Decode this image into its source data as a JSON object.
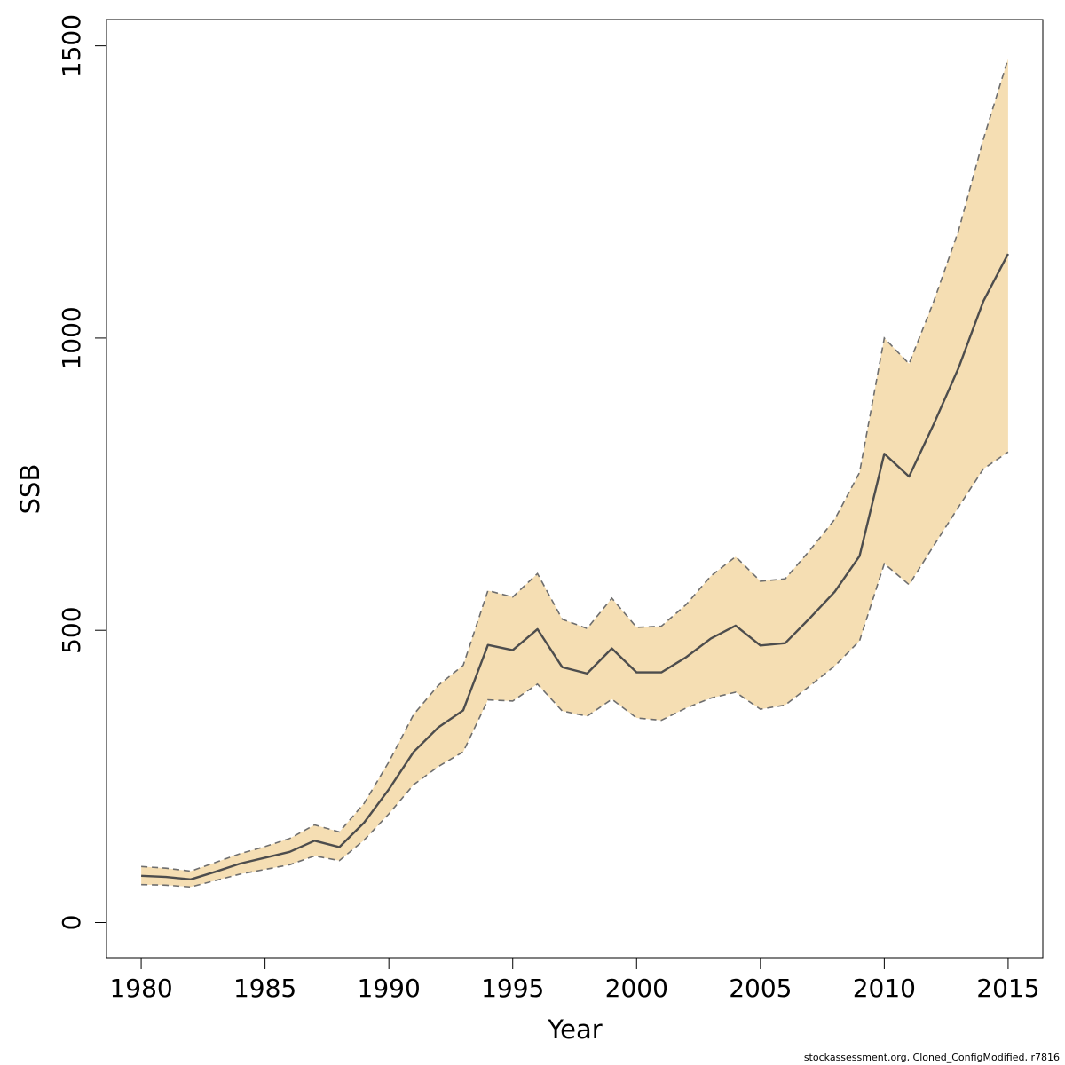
{
  "footer_text": "stockassessment.org, Cloned_ConfigModified, r7816",
  "chart_data": {
    "type": "area",
    "title": "",
    "xlabel": "Year",
    "ylabel": "SSB",
    "xlim": [
      1978.6,
      2016.4
    ],
    "ylim": [
      -60,
      1545
    ],
    "xticks": [
      1980,
      1985,
      1990,
      1995,
      2000,
      2005,
      2010,
      2015
    ],
    "yticks": [
      0,
      500,
      1000,
      1500
    ],
    "grid": false,
    "legend": "none",
    "colors": {
      "band": "#F5DEB3",
      "line": "#4d4d4d",
      "bounds": "#6e6e6e"
    },
    "x": [
      1980,
      1981,
      1982,
      1983,
      1984,
      1985,
      1986,
      1987,
      1988,
      1989,
      1990,
      1991,
      1992,
      1993,
      1994,
      1995,
      1996,
      1997,
      1998,
      1999,
      2000,
      2001,
      2002,
      2003,
      2004,
      2005,
      2006,
      2007,
      2008,
      2009,
      2010,
      2011,
      2012,
      2013,
      2014,
      2015
    ],
    "series": [
      {
        "values": [
          80,
          78,
          74,
          87,
          101,
          111,
          121,
          140,
          129,
          171,
          228,
          292,
          334,
          363,
          475,
          466,
          502,
          437,
          426,
          469,
          428,
          428,
          454,
          486,
          508,
          474,
          478,
          521,
          566,
          627,
          802,
          763,
          853,
          949,
          1063,
          1144
        ]
      },
      {
        "values": [
          96,
          93,
          88,
          103,
          118,
          130,
          144,
          167,
          155,
          204,
          275,
          356,
          406,
          440,
          568,
          557,
          597,
          519,
          503,
          555,
          505,
          507,
          544,
          593,
          626,
          584,
          588,
          637,
          690,
          770,
          1000,
          956,
          1063,
          1184,
          1340,
          1478
        ]
      },
      {
        "values": [
          65,
          64,
          61,
          72,
          83,
          91,
          99,
          114,
          106,
          141,
          186,
          236,
          267,
          292,
          381,
          379,
          408,
          362,
          353,
          382,
          350,
          346,
          367,
          384,
          394,
          365,
          372,
          405,
          439,
          482,
          614,
          578,
          645,
          711,
          776,
          805
        ]
      }
    ]
  }
}
